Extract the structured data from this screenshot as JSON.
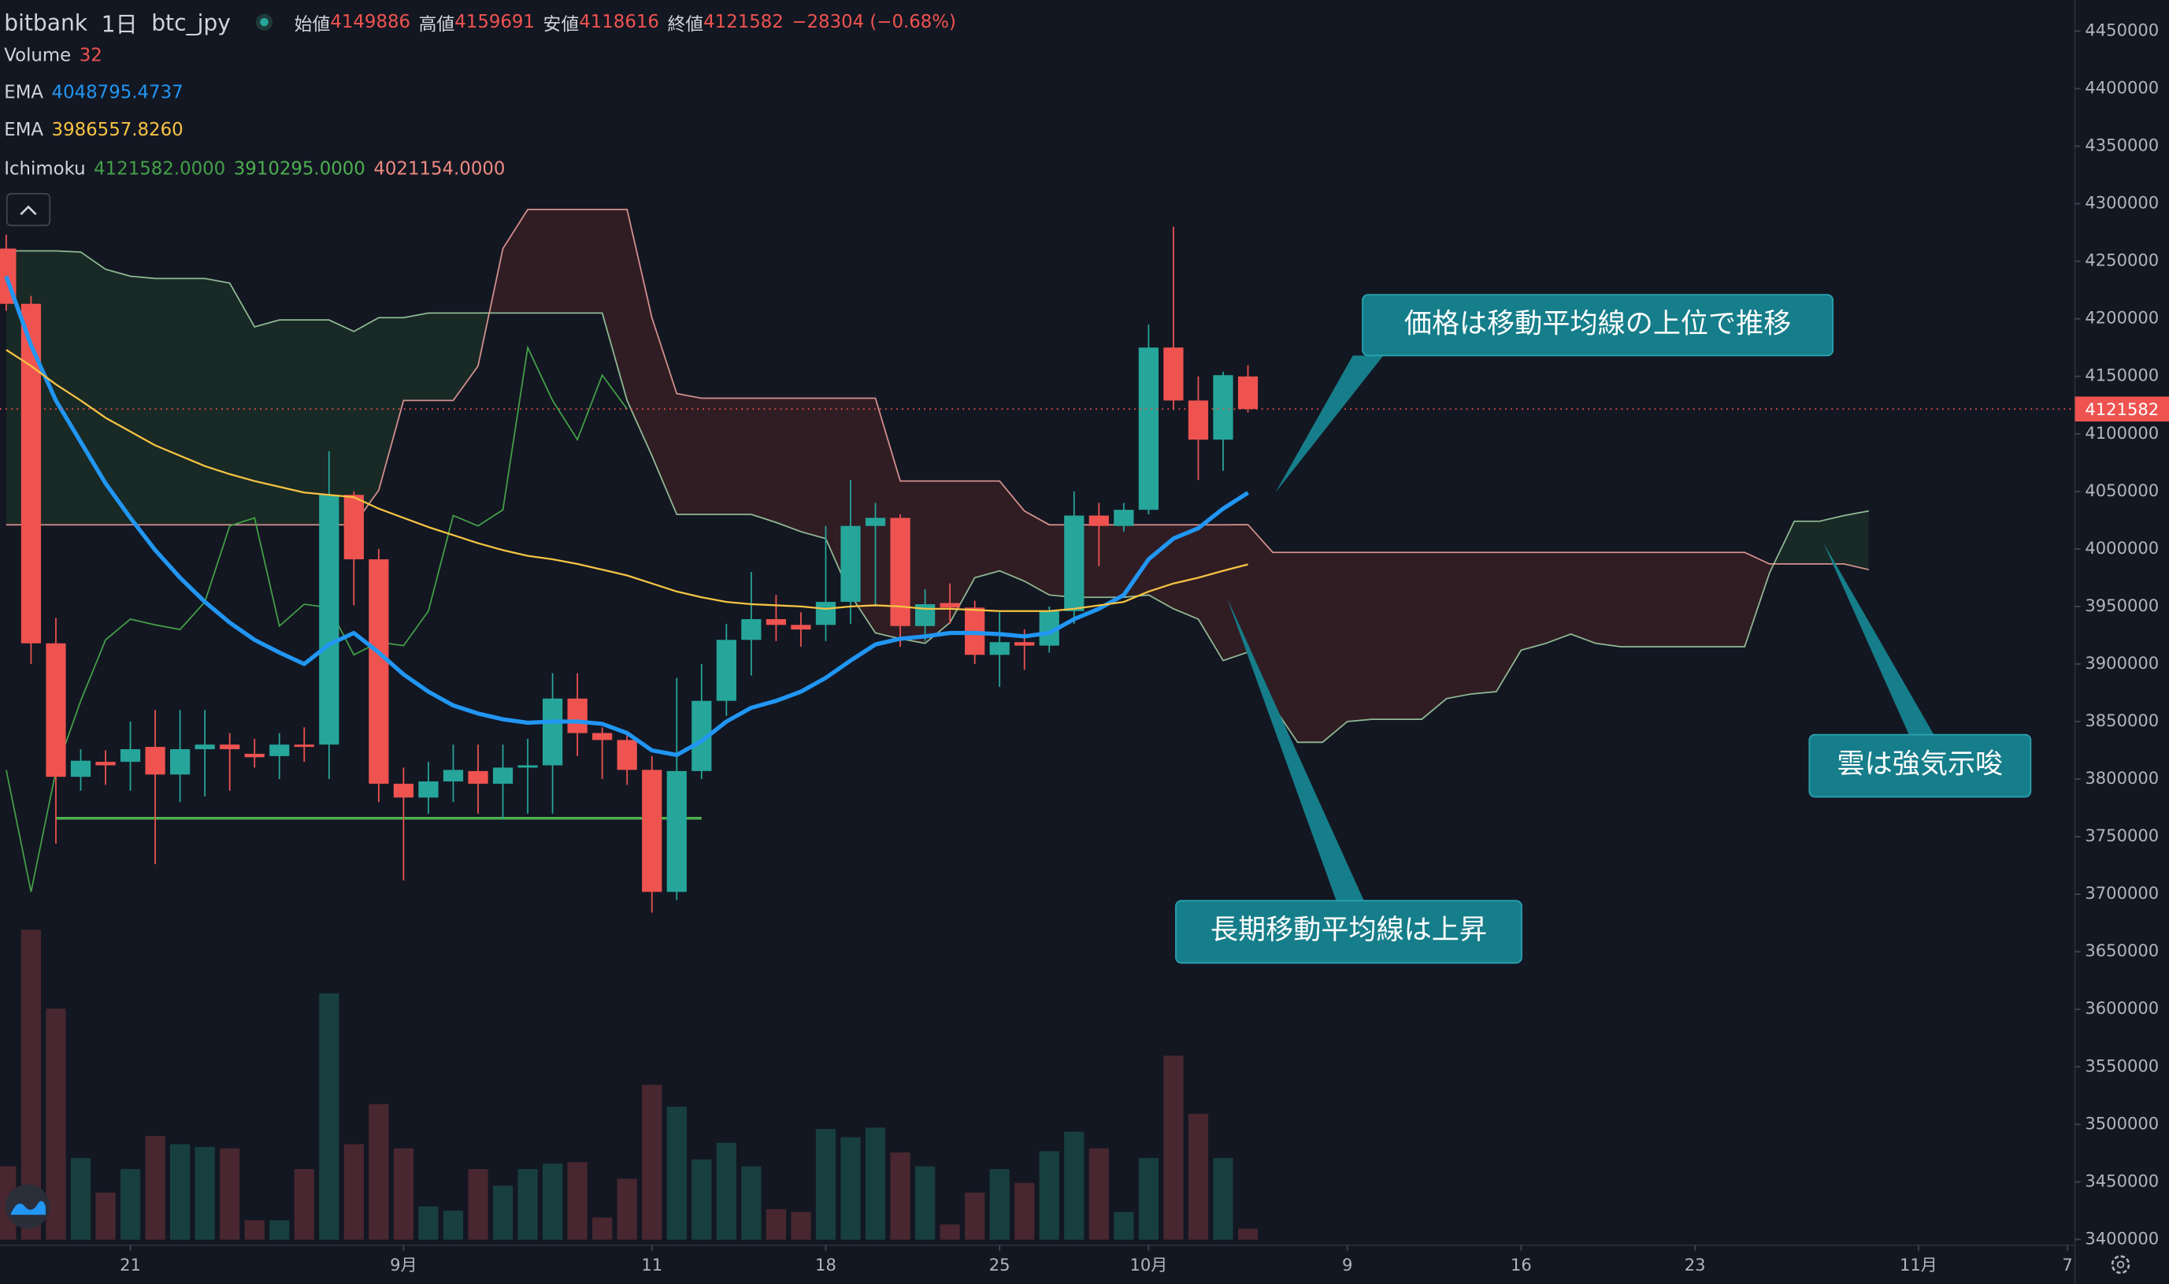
{
  "header": {
    "exchange": "bitbank",
    "interval": "1日",
    "symbol": "btc_jpy",
    "open_label": "始値",
    "high_label": "高値",
    "low_label": "安値",
    "close_label": "終値",
    "change": "−28304 (−0.68%)"
  },
  "chart_data": {
    "type": "candlestick",
    "up_color": "#26a69a",
    "down_color": "#ef5350",
    "volume_up_color": "#183f40",
    "volume_down_color": "#482730",
    "xlim": [
      -0.25,
      83.3
    ],
    "xticks": [
      {
        "value": 5,
        "label": "21"
      },
      {
        "value": 16,
        "label": "9月"
      },
      {
        "value": 26,
        "label": "11"
      },
      {
        "value": 33,
        "label": "18"
      },
      {
        "value": 40,
        "label": "25"
      },
      {
        "value": 46,
        "label": "10月"
      },
      {
        "value": 54,
        "label": "9"
      },
      {
        "value": 61,
        "label": "16"
      },
      {
        "value": 68,
        "label": "23"
      },
      {
        "value": 77,
        "label": "11月"
      },
      {
        "value": 83,
        "label": "7"
      }
    ],
    "ylim": [
      3395000,
      4477000
    ],
    "yticks": [
      3400000,
      3450000,
      3500000,
      3550000,
      3600000,
      3650000,
      3700000,
      3750000,
      3800000,
      3850000,
      3900000,
      3950000,
      4000000,
      4050000,
      4100000,
      4150000,
      4200000,
      4250000,
      4300000,
      4350000,
      4400000,
      4450000
    ],
    "grid": false,
    "candles": {
      "open": [
        4261000,
        4213000,
        3918000,
        3802000,
        3815000,
        3815000,
        3828000,
        3804000,
        3826000,
        3830000,
        3822000,
        3820000,
        3830000,
        3830000,
        4047000,
        3991000,
        3796000,
        3784000,
        3798000,
        3807000,
        3796000,
        3810000,
        3812000,
        3870000,
        3840000,
        3834000,
        3808000,
        3702000,
        3807000,
        3868000,
        3921000,
        3939000,
        3934000,
        3934000,
        3954000,
        4020000,
        4027000,
        3933000,
        3953000,
        3949000,
        3908000,
        3919000,
        3916000,
        3946000,
        4029000,
        4020000,
        4034000,
        4175000,
        4129000,
        4095000,
        4149886
      ],
      "high": [
        4273000,
        4220000,
        3940000,
        3826000,
        3825000,
        3850000,
        3860000,
        3860000,
        3860000,
        3840000,
        3835000,
        3840000,
        3845000,
        4085000,
        4050000,
        4000000,
        3810000,
        3815000,
        3830000,
        3830000,
        3830000,
        3835000,
        3892000,
        3892000,
        3845000,
        3842000,
        3820000,
        3888000,
        3900000,
        3935000,
        3980000,
        3960000,
        3945000,
        4020000,
        4060000,
        4040000,
        4030000,
        3965000,
        3970000,
        3955000,
        3945000,
        3930000,
        3950000,
        4050000,
        4040000,
        4040000,
        4195000,
        4280000,
        4150000,
        4154000,
        4159691
      ],
      "low": [
        4207000,
        3900000,
        3744000,
        3790000,
        3795000,
        3790000,
        3726000,
        3780000,
        3785000,
        3790000,
        3810000,
        3800000,
        3815000,
        3800000,
        3951000,
        3780000,
        3712000,
        3770000,
        3780000,
        3770000,
        3765000,
        3770000,
        3770000,
        3820000,
        3800000,
        3795000,
        3684000,
        3695000,
        3800000,
        3855000,
        3890000,
        3920000,
        3915000,
        3920000,
        3935000,
        3950000,
        3915000,
        3920000,
        3935000,
        3900000,
        3880000,
        3895000,
        3910000,
        3935000,
        3985000,
        4015000,
        4030000,
        4121000,
        4060000,
        4068000,
        4118616
      ],
      "close": [
        4213000,
        3918000,
        3802000,
        3816000,
        3812000,
        3826000,
        3804000,
        3826000,
        3830000,
        3826000,
        3819000,
        3830000,
        3828000,
        4047000,
        3991000,
        3796000,
        3784000,
        3798000,
        3808000,
        3796000,
        3810000,
        3812000,
        3870000,
        3840000,
        3834000,
        3808000,
        3702000,
        3807000,
        3868000,
        3921000,
        3939000,
        3934000,
        3930000,
        3954000,
        4020000,
        4027000,
        3933000,
        3952000,
        3949000,
        3908000,
        3919000,
        3916000,
        3946000,
        4029000,
        4020000,
        4034000,
        4175000,
        4129000,
        4095000,
        4151000,
        4121582
      ]
    },
    "volume_name": "Volume",
    "volume_ylim": [
      0,
      3584
    ],
    "volume": [
      212,
      896,
      668,
      236,
      136,
      204,
      300,
      276,
      268,
      264,
      56,
      56,
      204,
      712,
      276,
      392,
      264,
      96,
      84,
      204,
      156,
      204,
      220,
      224,
      64,
      176,
      448,
      384,
      232,
      280,
      212,
      88,
      80,
      320,
      296,
      324,
      252,
      212,
      44,
      136,
      204,
      164,
      256,
      312,
      264,
      80,
      236,
      532,
      364,
      236,
      32
    ],
    "ema": [
      {
        "name": "EMA",
        "color": "#2196f3",
        "values": [
          4237000,
          4177000,
          4129000,
          4093000,
          4057000,
          4027000,
          3999000,
          3975000,
          3954000,
          3936000,
          3921000,
          3910000,
          3900000,
          3917000,
          3927000,
          3910000,
          3891000,
          3876000,
          3864000,
          3857000,
          3852000,
          3849000,
          3850000,
          3850000,
          3848000,
          3840000,
          3825000,
          3821000,
          3833000,
          3850000,
          3862000,
          3868000,
          3876000,
          3888000,
          3903000,
          3917000,
          3922000,
          3924000,
          3927000,
          3927000,
          3926000,
          3924000,
          3927000,
          3939000,
          3948000,
          3960000,
          3991000,
          4009000,
          4018000,
          4035000,
          4048795.4737
        ]
      },
      {
        "name": "EMA",
        "color": "#f6c343",
        "last_value_label": "3986557.8260",
        "values": [
          4173000,
          4159000,
          4143000,
          4129000,
          4114000,
          4102000,
          4090000,
          4081000,
          4072000,
          4065000,
          4059000,
          4054000,
          4049000,
          4047000,
          4045000,
          4035000,
          4027000,
          4019000,
          4012000,
          4005000,
          3999000,
          3994000,
          3991000,
          3987000,
          3982000,
          3977000,
          3970000,
          3963000,
          3958000,
          3954000,
          3952000,
          3951000,
          3950000,
          3948000,
          3950000,
          3951000,
          3950000,
          3948000,
          3948000,
          3947000,
          3946000,
          3946000,
          3946000,
          3948000,
          3951000,
          3954000,
          3963000,
          3970000,
          3975000,
          3981000,
          3986557.826
        ]
      }
    ],
    "ichimoku": {
      "name": "Ichimoku",
      "lagging": {
        "color": "#43a047",
        "current_label": "4121582.0000",
        "values": [
          3808000,
          3702000,
          3807000,
          3868000,
          3921000,
          3939000,
          3934000,
          3930000,
          3954000,
          4020000,
          4027000,
          3933000,
          3952000,
          3949000,
          3908000,
          3919000,
          3916000,
          3946000,
          4029000,
          4020000,
          4034000,
          4175000,
          4129000,
          4095000,
          4151000,
          4121582
        ]
      },
      "lead_a": {
        "color": "#a5d6a7",
        "fill": "rgba(67,160,71,0.13)",
        "current_label": "3910295.0000",
        "values": [
          4259000,
          4259000,
          4259000,
          4258000,
          4243000,
          4237000,
          4235000,
          4235000,
          4235000,
          4231000,
          4193000,
          4199000,
          4199000,
          4199000,
          4189000,
          4201000,
          4201000,
          4205000,
          4205000,
          4205000,
          4205000,
          4205000,
          4205000,
          4205000,
          4205000,
          4129000,
          4081000,
          4030000,
          4030000,
          4030000,
          4030000,
          4023000,
          4015000,
          4009000,
          3960000,
          3927000,
          3922000,
          3918000,
          3936000,
          3975000,
          3981000,
          3972000,
          3960000,
          3958000,
          3958000,
          3958000,
          3960000,
          3948000,
          3939000,
          3903000,
          3910295,
          3864000,
          3832000,
          3832000,
          3850000,
          3852000,
          3852000,
          3852000,
          3870000,
          3874000,
          3876000,
          3912000,
          3918000,
          3926000,
          3918000,
          3915000,
          3915000,
          3915000,
          3915000,
          3915000,
          3915000,
          3979000,
          4024000,
          4024000,
          4029000,
          4033000
        ]
      },
      "lead_b": {
        "color": "#f4a6a0",
        "fill": "rgba(244,67,54,0.13)",
        "current_label": "4021154.0000",
        "values": [
          4021000,
          4021000,
          4021000,
          4021000,
          4021000,
          4021000,
          4021000,
          4021000,
          4021000,
          4021000,
          4021000,
          4021000,
          4021000,
          4021000,
          4021000,
          4051000,
          4129000,
          4129000,
          4129000,
          4159000,
          4261000,
          4295000,
          4295000,
          4295000,
          4295000,
          4295000,
          4201000,
          4135000,
          4131000,
          4131000,
          4131000,
          4131000,
          4131000,
          4131000,
          4131000,
          4131000,
          4059000,
          4059000,
          4059000,
          4059000,
          4059000,
          4033000,
          4021000,
          4021000,
          4021000,
          4021000,
          4021000,
          4021000,
          4021000,
          4021000,
          4021154,
          3997000,
          3997000,
          3997000,
          3997000,
          3997000,
          3997000,
          3997000,
          3997000,
          3997000,
          3997000,
          3997000,
          3997000,
          3997000,
          3997000,
          3997000,
          3997000,
          3997000,
          3997000,
          3997000,
          3997000,
          3987000,
          3987000,
          3987000,
          3987000,
          3982000
        ]
      }
    },
    "support_line": {
      "value": 3766000,
      "start": 2,
      "end": 28,
      "color": "#4caf50"
    }
  },
  "annotations": [
    "価格は移動平均線の上位で推移",
    "雲は強気示唆",
    "長期移動平均線は上昇"
  ]
}
